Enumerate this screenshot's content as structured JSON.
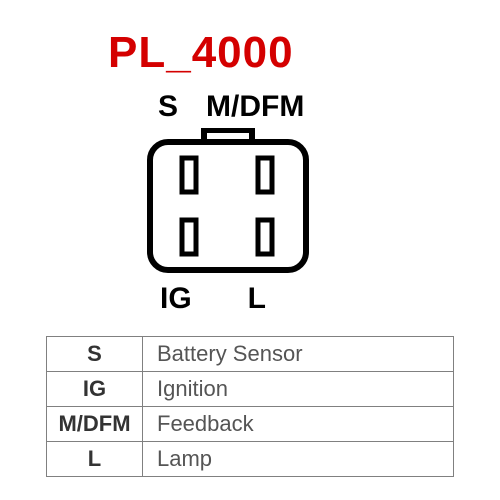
{
  "title": {
    "text": "PL_4000",
    "color": "#d40000",
    "fontsize": 44
  },
  "connector": {
    "top_left_label": "S",
    "top_right_label": "M/DFM",
    "bottom_left_label": "IG",
    "bottom_right_label": "L",
    "label_color": "#000000",
    "label_fontsize": 30,
    "body_stroke": "#000000",
    "body_stroke_width": 6,
    "body_fill": "#ffffff",
    "body_width": 156,
    "body_height": 128,
    "body_corner_radius": 18,
    "tab_width": 48,
    "tab_height": 14,
    "pin_width": 14,
    "pin_height": 34,
    "pin_gap": 60,
    "pin_side_inset": 32
  },
  "legend": {
    "border_color": "#808080",
    "text_color": "#555555",
    "sym_color": "#333333",
    "fontsize": 22,
    "rows": [
      {
        "symbol": "S",
        "desc": "Battery Sensor"
      },
      {
        "symbol": "IG",
        "desc": "Ignition"
      },
      {
        "symbol": "M/DFM",
        "desc": "Feedback"
      },
      {
        "symbol": "L",
        "desc": "Lamp"
      }
    ]
  }
}
